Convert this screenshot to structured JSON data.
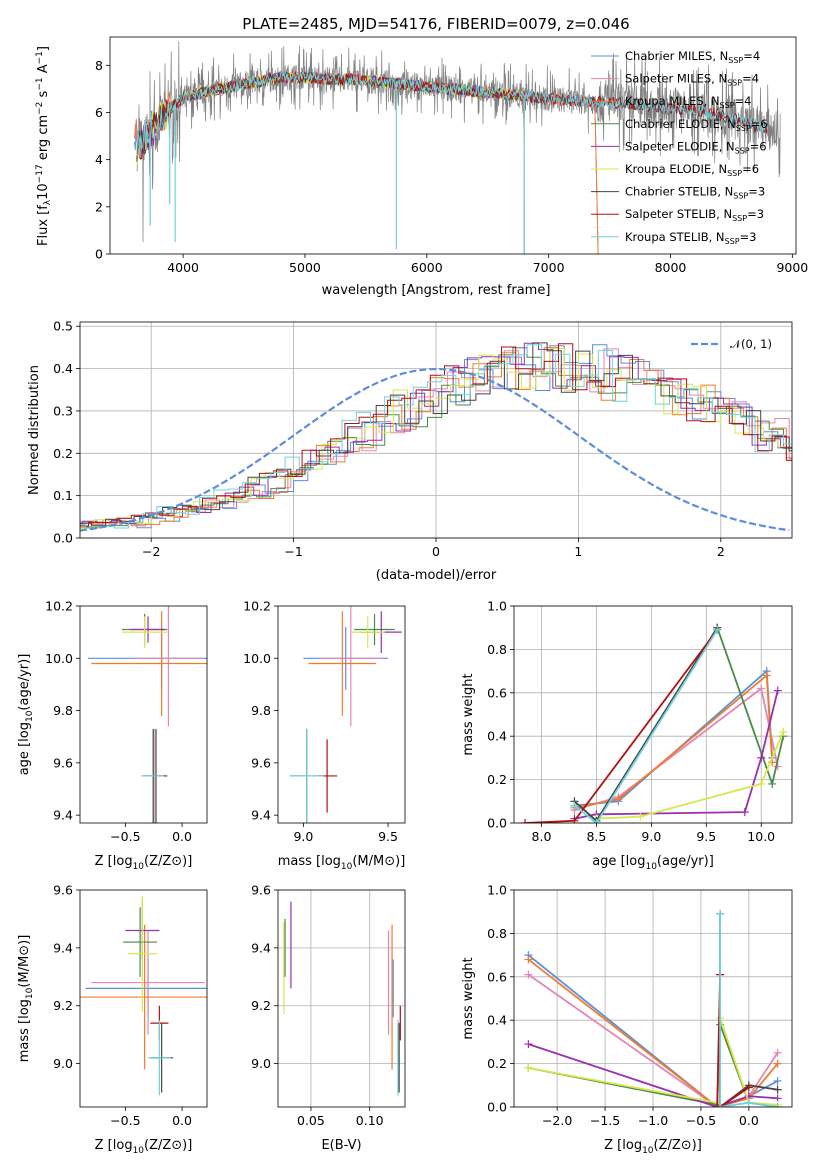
{
  "figure": {
    "title": "PLATE=2485, MJD=54176, FIBERID=0079, z=0.046"
  },
  "colors": {
    "Chabrier MILES": "#5b8fd9",
    "Salpeter MILES": "#e387b8",
    "Kroupa MILES": "#f07b2e",
    "Chabrier ELODIE": "#4a8b4a",
    "Salpeter ELODIE": "#9a2fb0",
    "Kroupa ELODIE": "#d6e84a",
    "Chabrier STELIB": "#444444",
    "Salpeter STELIB": "#b01010",
    "Kroupa STELIB": "#6fd2dc",
    "data": "#808080",
    "normal": "#5b8fd9"
  },
  "chart_data": [
    {
      "id": "spectrum",
      "type": "line",
      "xlabel": "wavelength [Angstrom, rest frame]",
      "ylabel": "Flux [f_λ 10^-17 erg cm^-2 s^-1 A^-1]",
      "ylabel_parts": {
        "main": "Flux [f",
        "sub1": "λ",
        "mid": "10",
        "sup1": "−17",
        "mid2": " erg cm",
        "sup2": "−2",
        "mid3": " s",
        "sup3": "−1",
        "end": " A",
        "sup4": "−1",
        "close": "]"
      },
      "xlim": [
        3400,
        9030
      ],
      "ylim": [
        0,
        9.2
      ],
      "xticks": [
        4000,
        5000,
        6000,
        7000,
        8000,
        9000
      ],
      "yticks": [
        0,
        2,
        4,
        6,
        8
      ],
      "legend_position": "right",
      "legend": [
        {
          "name": "Chabrier MILES",
          "n": "4"
        },
        {
          "name": "Salpeter MILES",
          "n": "4"
        },
        {
          "name": "Kroupa MILES",
          "n": "4"
        },
        {
          "name": "Chabrier ELODIE",
          "n": "6"
        },
        {
          "name": "Salpeter ELODIE",
          "n": "6"
        },
        {
          "name": "Kroupa ELODIE",
          "n": "6"
        },
        {
          "name": "Chabrier STELIB",
          "n": "3"
        },
        {
          "name": "Salpeter STELIB",
          "n": "3"
        },
        {
          "name": "Kroupa STELIB",
          "n": "3"
        }
      ],
      "legend_n_label": "N",
      "legend_n_sub": "SSP",
      "continuum": [
        [
          3620,
          4.6
        ],
        [
          3700,
          5.0
        ],
        [
          3800,
          5.6
        ],
        [
          3900,
          6.2
        ],
        [
          4000,
          6.6
        ],
        [
          4200,
          6.9
        ],
        [
          4400,
          7.1
        ],
        [
          4600,
          7.3
        ],
        [
          4800,
          7.5
        ],
        [
          5000,
          7.5
        ],
        [
          5200,
          7.4
        ],
        [
          5400,
          7.4
        ],
        [
          5600,
          7.3
        ],
        [
          5800,
          7.2
        ],
        [
          6000,
          7.1
        ],
        [
          6200,
          7.0
        ],
        [
          6400,
          6.9
        ],
        [
          6600,
          6.8
        ],
        [
          6800,
          6.7
        ],
        [
          7000,
          6.6
        ],
        [
          7200,
          6.5
        ],
        [
          7400,
          6.45
        ],
        [
          7600,
          6.4
        ],
        [
          7800,
          6.3
        ],
        [
          8000,
          6.2
        ],
        [
          8200,
          6.1
        ],
        [
          8400,
          5.9
        ],
        [
          8600,
          5.6
        ],
        [
          8800,
          5.3
        ],
        [
          9000,
          5.0
        ]
      ],
      "model_ranges": {
        "MILES": [
          3600,
          7420
        ],
        "ELODIE": [
          3620,
          6800
        ],
        "STELIB": [
          3620,
          8800
        ]
      }
    },
    {
      "id": "residuals",
      "type": "line",
      "xlabel": "(data-model)/error",
      "ylabel": "Normed distribution",
      "xlim": [
        -2.5,
        2.5
      ],
      "ylim": [
        0,
        0.51
      ],
      "xticks": [
        -2,
        -1,
        0,
        1,
        2
      ],
      "yticks": [
        0.0,
        0.1,
        0.2,
        0.3,
        0.4,
        0.5
      ],
      "grid": true,
      "legend_position": "top-right",
      "normal_label": "𝒩(0, 1)",
      "bin_width": 0.1,
      "base_hist": [
        0.037,
        0.033,
        0.036,
        0.033,
        0.037,
        0.045,
        0.055,
        0.062,
        0.07,
        0.075,
        0.083,
        0.093,
        0.105,
        0.118,
        0.133,
        0.15,
        0.169,
        0.188,
        0.208,
        0.227,
        0.245,
        0.263,
        0.28,
        0.297,
        0.314,
        0.333,
        0.353,
        0.37,
        0.38,
        0.385,
        0.39,
        0.393,
        0.395,
        0.397,
        0.398,
        0.397,
        0.395,
        0.392,
        0.385,
        0.377,
        0.368,
        0.357,
        0.345,
        0.333,
        0.32,
        0.307,
        0.292,
        0.276,
        0.258,
        0.24,
        0.222,
        0.205,
        0.188,
        0.17,
        0.15,
        0.133,
        0.117,
        0.1,
        0.085,
        0.075,
        0.068,
        0.06,
        0.055,
        0.05,
        0.045,
        0.04,
        0.036,
        0.033,
        0.032,
        0.03,
        0.031,
        0.03,
        0.029,
        0.028,
        0.03,
        0.029,
        0.028,
        0.03,
        0.029,
        0.03,
        0.029,
        0.03,
        0.03,
        0.029,
        0.03
      ]
    },
    {
      "id": "age-vs-Z",
      "type": "scatter",
      "xlabel": "Z [log10(Z/Z⊙)]",
      "ylabel": "age [log10(age/yr)]",
      "xlim": [
        -0.9,
        0.22
      ],
      "ylim": [
        9.37,
        10.2
      ],
      "xticks": [
        -0.5,
        0.0
      ],
      "yticks": [
        9.4,
        9.6,
        9.8,
        10.0,
        10.2
      ],
      "points": [
        {
          "model": "Chabrier MILES",
          "x": -0.18,
          "xerr": 0.65,
          "y": 10.0,
          "yerr": 0.12
        },
        {
          "model": "Salpeter MILES",
          "x": -0.12,
          "xerr": 0.3,
          "y": 10.0,
          "yerr": 0.26
        },
        {
          "model": "Kroupa MILES",
          "x": -0.18,
          "xerr": 0.62,
          "y": 9.98,
          "yerr": 0.2
        },
        {
          "model": "Chabrier ELODIE",
          "x": -0.33,
          "xerr": 0.2,
          "y": 10.11,
          "yerr": 0.06
        },
        {
          "model": "Salpeter ELODIE",
          "x": -0.3,
          "xerr": 0.15,
          "y": 10.11,
          "yerr": 0.05
        },
        {
          "model": "Kroupa ELODIE",
          "x": -0.33,
          "xerr": 0.2,
          "y": 10.1,
          "yerr": 0.06
        },
        {
          "model": "Chabrier STELIB",
          "x": -0.23,
          "xerr": 0.1,
          "y": 9.55,
          "yerr": 0.18
        },
        {
          "model": "Salpeter STELIB",
          "x": -0.25,
          "xerr": 0.1,
          "y": 9.55,
          "yerr": 0.18
        },
        {
          "model": "Kroupa STELIB",
          "x": -0.26,
          "xerr": 0.1,
          "y": 9.55,
          "yerr": 0.18
        }
      ]
    },
    {
      "id": "age-vs-mass",
      "type": "scatter",
      "xlabel": "mass [log10(M/M⊙)]",
      "ylabel": "",
      "xlim": [
        8.85,
        9.6
      ],
      "ylim": [
        9.37,
        10.2
      ],
      "xticks": [
        9.0,
        9.5
      ],
      "yticks": [
        9.4,
        9.6,
        9.8,
        10.0,
        10.2
      ],
      "points": [
        {
          "model": "Chabrier MILES",
          "x": 9.25,
          "xerr": 0.25,
          "y": 10.0,
          "yerr": 0.12
        },
        {
          "model": "Salpeter MILES",
          "x": 9.28,
          "xerr": 0.18,
          "y": 10.0,
          "yerr": 0.26
        },
        {
          "model": "Kroupa MILES",
          "x": 9.23,
          "xerr": 0.2,
          "y": 9.98,
          "yerr": 0.2
        },
        {
          "model": "Chabrier ELODIE",
          "x": 9.42,
          "xerr": 0.12,
          "y": 10.11,
          "yerr": 0.06
        },
        {
          "model": "Salpeter ELODIE",
          "x": 9.46,
          "xerr": 0.12,
          "y": 10.1,
          "yerr": 0.08
        },
        {
          "model": "Kroupa ELODIE",
          "x": 9.38,
          "xerr": 0.1,
          "y": 10.1,
          "yerr": 0.06
        },
        {
          "model": "Chabrier STELIB",
          "x": 9.02,
          "xerr": 0.1,
          "y": 9.55,
          "yerr": 0.18
        },
        {
          "model": "Salpeter STELIB",
          "x": 9.14,
          "xerr": 0.06,
          "y": 9.55,
          "yerr": 0.14
        },
        {
          "model": "Kroupa STELIB",
          "x": 9.02,
          "xerr": 0.1,
          "y": 9.55,
          "yerr": 0.18
        }
      ]
    },
    {
      "id": "weight-vs-age",
      "type": "line",
      "xlabel": "age [log10(age/yr)]",
      "ylabel": "mass weight",
      "xlim": [
        7.75,
        10.28
      ],
      "ylim": [
        0,
        1.0
      ],
      "xticks": [
        8.0,
        8.5,
        9.0,
        9.5,
        10.0
      ],
      "yticks": [
        0.0,
        0.2,
        0.4,
        0.6,
        0.8,
        1.0
      ],
      "grid": true,
      "series": [
        {
          "model": "Chabrier MILES",
          "x": [
            8.3,
            8.7,
            10.05,
            10.1
          ],
          "y": [
            0.08,
            0.1,
            0.7,
            0.3
          ]
        },
        {
          "model": "Salpeter MILES",
          "x": [
            8.3,
            8.7,
            10.0,
            10.15
          ],
          "y": [
            0.06,
            0.12,
            0.62,
            0.26
          ]
        },
        {
          "model": "Kroupa MILES",
          "x": [
            8.3,
            8.7,
            10.05,
            10.1
          ],
          "y": [
            0.07,
            0.11,
            0.68,
            0.28
          ]
        },
        {
          "model": "Chabrier ELODIE",
          "x": [
            8.5,
            9.6,
            10.1,
            10.2
          ],
          "y": [
            0.01,
            0.9,
            0.18,
            0.4
          ]
        },
        {
          "model": "Salpeter ELODIE",
          "x": [
            8.3,
            8.5,
            9.85,
            10.0,
            10.15
          ],
          "y": [
            0.02,
            0.04,
            0.05,
            0.3,
            0.61
          ]
        },
        {
          "model": "Kroupa ELODIE",
          "x": [
            8.5,
            8.9,
            10.0,
            10.2
          ],
          "y": [
            0.02,
            0.03,
            0.18,
            0.42
          ]
        },
        {
          "model": "Chabrier STELIB",
          "x": [
            8.3,
            8.5,
            9.6
          ],
          "y": [
            0.1,
            0.01,
            0.9
          ]
        },
        {
          "model": "Salpeter STELIB",
          "x": [
            7.85,
            8.3,
            9.6
          ],
          "y": [
            0.0,
            0.01,
            0.89
          ]
        },
        {
          "model": "Kroupa STELIB",
          "x": [
            8.3,
            8.5,
            9.6
          ],
          "y": [
            0.08,
            0.0,
            0.89
          ]
        }
      ]
    },
    {
      "id": "mass-vs-Z",
      "type": "scatter",
      "xlabel": "Z [log10(Z/Z⊙)]",
      "ylabel": "mass [log10(M/M⊙)]",
      "xlim": [
        -0.9,
        0.22
      ],
      "ylim": [
        8.85,
        9.6
      ],
      "xticks": [
        -0.5,
        0.0
      ],
      "yticks": [
        9.0,
        9.2,
        9.4,
        9.6
      ],
      "points": [
        {
          "model": "Chabrier MILES",
          "x": -0.3,
          "xerr": 0.55,
          "y": 9.26,
          "yerr": 0.1
        },
        {
          "model": "Salpeter MILES",
          "x": -0.3,
          "xerr": 0.5,
          "y": 9.28,
          "yerr": 0.18
        },
        {
          "model": "Kroupa MILES",
          "x": -0.33,
          "xerr": 0.57,
          "y": 9.23,
          "yerr": 0.25
        },
        {
          "model": "Chabrier ELODIE",
          "x": -0.37,
          "xerr": 0.15,
          "y": 9.42,
          "yerr": 0.12
        },
        {
          "model": "Salpeter ELODIE",
          "x": -0.35,
          "xerr": 0.15,
          "y": 9.46,
          "yerr": 0.1
        },
        {
          "model": "Kroupa ELODIE",
          "x": -0.35,
          "xerr": 0.13,
          "y": 9.38,
          "yerr": 0.2
        },
        {
          "model": "Chabrier STELIB",
          "x": -0.18,
          "xerr": 0.1,
          "y": 9.02,
          "yerr": 0.12
        },
        {
          "model": "Salpeter STELIB",
          "x": -0.2,
          "xerr": 0.08,
          "y": 9.14,
          "yerr": 0.06
        },
        {
          "model": "Kroupa STELIB",
          "x": -0.2,
          "xerr": 0.1,
          "y": 9.02,
          "yerr": 0.13
        }
      ]
    },
    {
      "id": "mass-vs-EBV",
      "type": "scatter",
      "xlabel": "E(B-V)",
      "ylabel": "",
      "xlim": [
        0.022,
        0.13
      ],
      "ylim": [
        8.85,
        9.6
      ],
      "xticks": [
        0.05,
        0.1
      ],
      "xticklabels": [
        "0.05",
        "0.10"
      ],
      "yticks": [
        9.0,
        9.2,
        9.4,
        9.6
      ],
      "grid": true,
      "points": [
        {
          "model": "Chabrier MILES",
          "x": 0.12,
          "y": 9.26,
          "yerr": 0.1
        },
        {
          "model": "Salpeter MILES",
          "x": 0.116,
          "y": 9.28,
          "yerr": 0.18
        },
        {
          "model": "Kroupa MILES",
          "x": 0.119,
          "y": 9.23,
          "yerr": 0.25
        },
        {
          "model": "Chabrier ELODIE",
          "x": 0.028,
          "y": 9.4,
          "yerr": 0.1
        },
        {
          "model": "Salpeter ELODIE",
          "x": 0.033,
          "y": 9.41,
          "yerr": 0.15
        },
        {
          "model": "Kroupa ELODIE",
          "x": 0.027,
          "y": 9.33,
          "yerr": 0.16
        },
        {
          "model": "Chabrier STELIB",
          "x": 0.125,
          "y": 9.02,
          "yerr": 0.12
        },
        {
          "model": "Salpeter STELIB",
          "x": 0.126,
          "y": 9.14,
          "yerr": 0.06
        },
        {
          "model": "Kroupa STELIB",
          "x": 0.124,
          "y": 9.02,
          "yerr": 0.13
        }
      ]
    },
    {
      "id": "weight-vs-Z",
      "type": "line",
      "xlabel": "Z [log10(Z/Z⊙)]",
      "ylabel": "mass weight",
      "xlim": [
        -2.45,
        0.45
      ],
      "ylim": [
        0,
        1.0
      ],
      "xticks": [
        -2.0,
        -1.5,
        -1.0,
        -0.5,
        0.0
      ],
      "yticks": [
        0.0,
        0.2,
        0.4,
        0.6,
        0.8,
        1.0
      ],
      "grid": true,
      "series": [
        {
          "model": "Chabrier MILES",
          "x": [
            -2.3,
            -0.33,
            0.0,
            0.3
          ],
          "y": [
            0.7,
            0.0,
            0.05,
            0.12
          ]
        },
        {
          "model": "Salpeter MILES",
          "x": [
            -2.3,
            -0.33,
            0.0,
            0.3
          ],
          "y": [
            0.61,
            0.0,
            0.05,
            0.25
          ]
        },
        {
          "model": "Kroupa MILES",
          "x": [
            -2.3,
            -0.33,
            0.0,
            0.3
          ],
          "y": [
            0.68,
            0.0,
            0.04,
            0.2
          ]
        },
        {
          "model": "Chabrier ELODIE",
          "x": [
            -2.3,
            -0.33,
            -0.3,
            0.0,
            0.3
          ],
          "y": [
            0.18,
            0.01,
            0.38,
            0.02,
            0.0
          ]
        },
        {
          "model": "Salpeter ELODIE",
          "x": [
            -2.3,
            -0.33,
            0.0,
            0.3
          ],
          "y": [
            0.29,
            0.0,
            0.05,
            0.04
          ]
        },
        {
          "model": "Kroupa ELODIE",
          "x": [
            -2.3,
            -0.33,
            -0.3,
            0.0,
            0.3
          ],
          "y": [
            0.18,
            0.02,
            0.41,
            0.02,
            0.01
          ]
        },
        {
          "model": "Chabrier STELIB",
          "x": [
            -0.3,
            -0.3,
            0.0,
            0.3
          ],
          "y": [
            0.89,
            0.0,
            0.1,
            0.08
          ]
        },
        {
          "model": "Salpeter STELIB",
          "x": [
            -0.33,
            -0.3,
            -0.3,
            0.0
          ],
          "y": [
            0.0,
            0.61,
            0.0,
            0.09
          ]
        },
        {
          "model": "Kroupa STELIB",
          "x": [
            -0.3,
            -0.3,
            0.0,
            0.3
          ],
          "y": [
            0.89,
            0.0,
            0.02,
            0.0
          ]
        }
      ]
    }
  ]
}
